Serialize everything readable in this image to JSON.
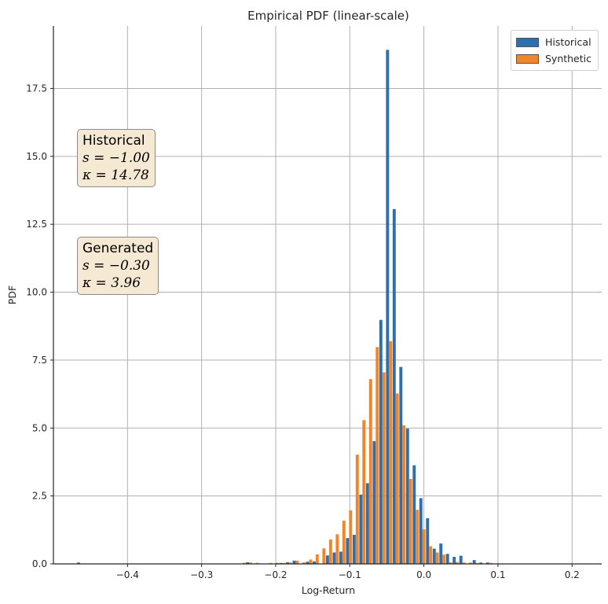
{
  "chart_data": {
    "type": "bar",
    "title": "Empirical PDF (linear-scale)",
    "xlabel": "Log-Return",
    "ylabel": "PDF",
    "xlim": [
      -0.5,
      0.24
    ],
    "ylim": [
      0,
      19.8
    ],
    "xticks": [
      -0.4,
      -0.3,
      -0.2,
      -0.1,
      0.0,
      0.1,
      0.2
    ],
    "xtick_labels": [
      "−0.4",
      "−0.3",
      "−0.2",
      "−0.1",
      "0.0",
      "0.1",
      "0.2"
    ],
    "yticks": [
      0,
      2.5,
      5,
      7.5,
      10,
      12.5,
      15,
      17.5
    ],
    "ytick_labels": [
      "0.0",
      "2.5",
      "5.0",
      "7.5",
      "10.0",
      "12.5",
      "15.0",
      "17.5"
    ],
    "grid": true,
    "legend_position": "top-right",
    "bin_centers": [
      -0.464,
      -0.245,
      -0.236,
      -0.227,
      -0.218,
      -0.209,
      -0.2,
      -0.191,
      -0.182,
      -0.173,
      -0.164,
      -0.155,
      -0.146,
      -0.137,
      -0.128,
      -0.119,
      -0.11,
      -0.101,
      -0.092,
      -0.083,
      -0.074,
      -0.065,
      -0.056,
      -0.047,
      -0.038,
      -0.029,
      -0.02,
      -0.011,
      -0.002,
      0.007,
      0.016,
      0.025,
      0.034,
      0.043,
      0.052,
      0.061,
      0.07,
      0.079,
      0.088,
      0.097,
      0.106,
      0.115,
      0.124,
      0.133,
      0.142,
      0.151,
      0.16,
      0.169,
      0.178,
      0.187,
      0.196,
      0.205,
      0.214,
      0.223
    ],
    "series": [
      {
        "name": "Historical",
        "color": "#2f6fad",
        "values": [
          0.05,
          0,
          0.06,
          0,
          0,
          0,
          0,
          0.03,
          0.06,
          0.12,
          0,
          0.08,
          0.09,
          0,
          0.31,
          0.42,
          0.45,
          0.95,
          1.07,
          2.55,
          2.97,
          4.52,
          8.98,
          18.92,
          13.06,
          7.25,
          4.98,
          3.63,
          2.42,
          1.68,
          0.56,
          0.75,
          0.37,
          0.26,
          0.3,
          0,
          0.14,
          0.05,
          0.05,
          0,
          0,
          0,
          0,
          0,
          0,
          0,
          0,
          0,
          0,
          0,
          0,
          0,
          0,
          0
        ]
      },
      {
        "name": "Synthetic",
        "color": "#f28527",
        "values": [
          0,
          0.04,
          0.05,
          0.04,
          0,
          0.02,
          0.04,
          0.03,
          0.05,
          0.12,
          0.06,
          0.16,
          0.35,
          0.57,
          0.9,
          1.09,
          1.59,
          1.97,
          4.02,
          5.29,
          6.8,
          7.98,
          7.05,
          8.2,
          6.27,
          5.1,
          3.13,
          1.99,
          1.27,
          0.65,
          0.42,
          0.34,
          0.06,
          0.07,
          0.05,
          0.05,
          0.02,
          0,
          0.03,
          0,
          0,
          0,
          0,
          0,
          0,
          0,
          0,
          0,
          0,
          0,
          0,
          0,
          0,
          0
        ]
      }
    ],
    "annotations": [
      {
        "title": "Historical",
        "s_label": "s = −1.00",
        "k_label": "κ = 14.78"
      },
      {
        "title": "Generated",
        "s_label": "s = −0.30",
        "k_label": "κ = 3.96"
      }
    ]
  }
}
